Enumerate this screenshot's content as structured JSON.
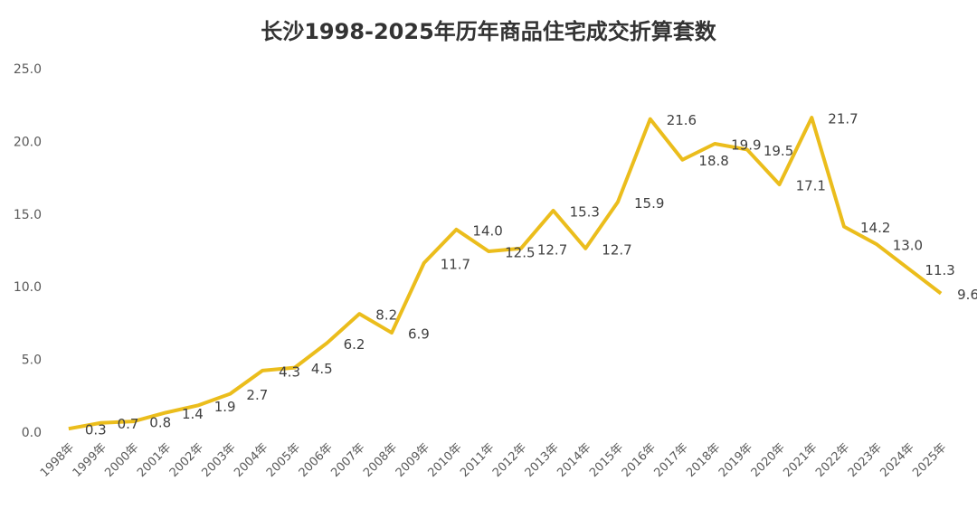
{
  "chart_data": {
    "type": "line",
    "title": "长沙1998-2025年历年商品住宅成交折算套数",
    "categories": [
      "1998年",
      "1999年",
      "2000年",
      "2001年",
      "2002年",
      "2003年",
      "2004年",
      "2005年",
      "2006年",
      "2007年",
      "2008年",
      "2009年",
      "2010年",
      "2011年",
      "2012年",
      "2013年",
      "2014年",
      "2015年",
      "2016年",
      "2017年",
      "2018年",
      "2019年",
      "2020年",
      "2021年",
      "2022年",
      "2023年",
      "2024年",
      "2025年"
    ],
    "series": [
      {
        "name": "成交折算套数",
        "color": "#EBBD1C",
        "values": [
          0.3,
          0.7,
          0.8,
          1.4,
          1.9,
          2.7,
          4.3,
          4.5,
          6.2,
          8.2,
          6.9,
          11.7,
          14.0,
          12.5,
          12.7,
          15.3,
          12.7,
          15.9,
          21.6,
          18.8,
          19.9,
          19.5,
          17.1,
          21.7,
          14.2,
          13.0,
          11.3,
          9.6
        ],
        "value_labels": [
          "0.3",
          "0.7",
          "0.8",
          "1.4",
          "1.9",
          "2.7",
          "4.3",
          "4.5",
          "6.2",
          "8.2",
          "6.9",
          "11.7",
          "14.0",
          "12.5",
          "12.7",
          "15.3",
          "12.7",
          "15.9",
          "21.6",
          "18.8",
          "19.9",
          "19.5",
          "17.1",
          "21.7",
          "14.2",
          "13.0",
          "11.3",
          "9.6"
        ]
      }
    ],
    "ylim": [
      0,
      25
    ],
    "yticks": [
      {
        "value": 0,
        "label": "0.0"
      },
      {
        "value": 5,
        "label": "5.0"
      },
      {
        "value": 10,
        "label": "10.0"
      },
      {
        "value": 15,
        "label": "15.0"
      },
      {
        "value": 20,
        "label": "20.0"
      },
      {
        "value": 25,
        "label": "25.0"
      }
    ],
    "grid": false
  }
}
